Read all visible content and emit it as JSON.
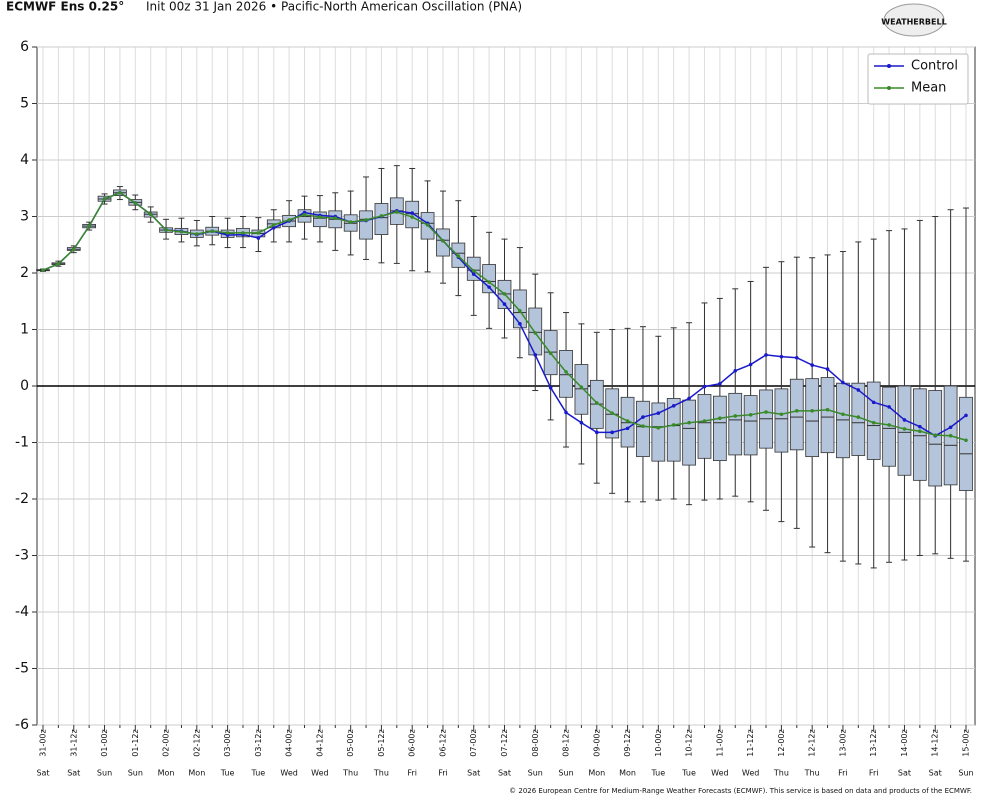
{
  "chart_data": {
    "type": "box",
    "title": "ECMWF Ens 0.25°",
    "subtitle": "Init 00z 31 Jan 2026 • Pacific-North American Oscillation (PNA)",
    "logo": "WEATHERBELL",
    "footer": "© 2026 European Centre for Medium-Range Weather Forecasts (ECMWF). This service is based on data and products of the ECMWF.",
    "categories": [
      "31-00z",
      null,
      "31-12z",
      null,
      "01-00z",
      null,
      "01-12z",
      null,
      "02-00z",
      null,
      "02-12z",
      null,
      "03-00z",
      null,
      "03-12z",
      null,
      "04-00z",
      null,
      "04-12z",
      null,
      "05-00z",
      null,
      "05-12z",
      null,
      "06-00z",
      null,
      "06-12z",
      null,
      "07-00z",
      null,
      "07-12z",
      null,
      "08-00z",
      null,
      "08-12z",
      null,
      "09-00z",
      null,
      "09-12z",
      null,
      "10-00z",
      null,
      "10-12z",
      null,
      "11-00z",
      null,
      "11-12z",
      null,
      "12-00z",
      null,
      "12-12z",
      null,
      "13-00z",
      null,
      "13-12z",
      null,
      "14-00z",
      null,
      "14-12z",
      null,
      "15-00z"
    ],
    "day_labels": [
      "Sat",
      null,
      "Sat",
      null,
      "Sun",
      null,
      "Sun",
      null,
      "Mon",
      null,
      "Mon",
      null,
      "Tue",
      null,
      "Tue",
      null,
      "Wed",
      null,
      "Wed",
      null,
      "Thu",
      null,
      "Thu",
      null,
      "Fri",
      null,
      "Fri",
      null,
      "Sat",
      null,
      "Sat",
      null,
      "Sun",
      null,
      "Sun",
      null,
      "Mon",
      null,
      "Mon",
      null,
      "Tue",
      null,
      "Tue",
      null,
      "Wed",
      null,
      "Wed",
      null,
      "Thu",
      null,
      "Thu",
      null,
      "Fri",
      null,
      "Fri",
      null,
      "Sat",
      null,
      "Sat",
      null,
      "Sun"
    ],
    "ylim": [
      -6,
      6
    ],
    "yticks": [
      -6,
      -5,
      -4,
      -3,
      -2,
      -1,
      0,
      1,
      2,
      3,
      4,
      5,
      6
    ],
    "grid": true,
    "legend": "top-right",
    "boxes": {
      "color": "#b4c4da",
      "min": [
        2.03,
        2.12,
        2.36,
        2.76,
        3.22,
        3.3,
        3.12,
        2.9,
        2.6,
        2.55,
        2.48,
        2.5,
        2.45,
        2.45,
        2.38,
        2.55,
        2.55,
        2.6,
        2.55,
        2.4,
        2.32,
        2.24,
        2.18,
        2.17,
        2.04,
        2.02,
        1.82,
        1.6,
        1.25,
        1.02,
        0.85,
        0.5,
        -0.08,
        -0.6,
        -1.08,
        -1.38,
        -1.72,
        -1.9,
        -2.05,
        -2.05,
        -2.02,
        -2.0,
        -2.1,
        -2.02,
        -2.0,
        -1.95,
        -2.05,
        -2.2,
        -2.4,
        -2.52,
        -2.85,
        -2.95,
        -3.1,
        -3.15,
        -3.22,
        -3.12,
        -3.08,
        -3.0,
        -2.97,
        -3.05,
        -3.1
      ],
      "q1": [
        2.04,
        2.15,
        2.4,
        2.8,
        3.27,
        3.37,
        3.2,
        2.99,
        2.72,
        2.68,
        2.63,
        2.67,
        2.63,
        2.64,
        2.64,
        2.8,
        2.82,
        2.9,
        2.82,
        2.8,
        2.74,
        2.6,
        2.68,
        2.86,
        2.8,
        2.6,
        2.3,
        2.1,
        1.87,
        1.65,
        1.37,
        1.03,
        0.55,
        0.2,
        -0.2,
        -0.5,
        -0.75,
        -0.92,
        -1.08,
        -1.25,
        -1.33,
        -1.33,
        -1.4,
        -1.28,
        -1.32,
        -1.22,
        -1.22,
        -1.1,
        -1.17,
        -1.13,
        -1.25,
        -1.18,
        -1.27,
        -1.23,
        -1.3,
        -1.42,
        -1.58,
        -1.67,
        -1.77,
        -1.75,
        -1.85
      ],
      "median": [
        2.05,
        2.16,
        2.42,
        2.83,
        3.31,
        3.42,
        3.25,
        3.04,
        2.76,
        2.73,
        2.69,
        2.74,
        2.7,
        2.71,
        2.7,
        2.87,
        2.92,
        3.0,
        2.97,
        2.95,
        2.88,
        2.95,
        2.98,
        3.1,
        3.05,
        2.88,
        2.58,
        2.35,
        2.05,
        1.85,
        1.63,
        1.3,
        0.95,
        0.6,
        0.2,
        -0.05,
        -0.32,
        -0.5,
        -0.65,
        -0.72,
        -0.72,
        -0.7,
        -0.75,
        -0.65,
        -0.65,
        -0.6,
        -0.62,
        -0.58,
        -0.58,
        -0.55,
        -0.62,
        -0.55,
        -0.6,
        -0.65,
        -0.7,
        -0.75,
        -0.82,
        -0.88,
        -1.03,
        -1.05,
        -1.2
      ],
      "q3": [
        2.06,
        2.18,
        2.45,
        2.86,
        3.36,
        3.47,
        3.3,
        3.08,
        2.8,
        2.79,
        2.76,
        2.81,
        2.76,
        2.79,
        2.76,
        2.94,
        3.02,
        3.12,
        3.08,
        3.1,
        3.03,
        3.1,
        3.23,
        3.33,
        3.27,
        3.07,
        2.78,
        2.53,
        2.28,
        2.15,
        1.87,
        1.7,
        1.38,
        0.98,
        0.63,
        0.38,
        0.1,
        -0.05,
        -0.2,
        -0.27,
        -0.3,
        -0.22,
        -0.25,
        -0.15,
        -0.18,
        -0.13,
        -0.17,
        -0.07,
        -0.05,
        0.12,
        0.13,
        0.15,
        0.05,
        0.05,
        0.07,
        -0.02,
        0.0,
        -0.05,
        -0.08,
        0.0,
        -0.2
      ],
      "max": [
        2.07,
        2.21,
        2.48,
        2.9,
        3.4,
        3.53,
        3.38,
        3.17,
        2.95,
        2.97,
        2.93,
        3.0,
        2.97,
        3.0,
        2.98,
        3.12,
        3.28,
        3.36,
        3.37,
        3.42,
        3.45,
        3.7,
        3.85,
        3.9,
        3.85,
        3.63,
        3.45,
        3.28,
        3.0,
        2.72,
        2.6,
        2.45,
        1.98,
        1.65,
        1.3,
        1.1,
        0.95,
        1.0,
        1.02,
        1.05,
        0.88,
        1.03,
        1.12,
        1.47,
        1.55,
        1.72,
        1.85,
        2.1,
        2.2,
        2.28,
        2.27,
        2.32,
        2.38,
        2.55,
        2.6,
        2.75,
        2.78,
        2.93,
        3.0,
        3.12,
        3.15
      ]
    },
    "series": [
      {
        "name": "Control",
        "color": "#1a1acc",
        "values": [
          2.05,
          2.16,
          2.42,
          2.83,
          3.31,
          3.42,
          3.24,
          3.04,
          2.76,
          2.74,
          2.68,
          2.74,
          2.67,
          2.68,
          2.62,
          2.8,
          2.92,
          3.07,
          3.02,
          3.0,
          2.9,
          2.93,
          3.0,
          3.1,
          3.06,
          2.88,
          2.57,
          2.28,
          1.98,
          1.75,
          1.45,
          1.1,
          0.55,
          -0.03,
          -0.47,
          -0.65,
          -0.82,
          -0.82,
          -0.75,
          -0.55,
          -0.48,
          -0.35,
          -0.22,
          -0.01,
          0.04,
          0.27,
          0.38,
          0.55,
          0.52,
          0.5,
          0.37,
          0.3,
          0.06,
          -0.07,
          -0.29,
          -0.37,
          -0.6,
          -0.72,
          -0.88,
          -0.73,
          -0.52
        ]
      },
      {
        "name": "Mean",
        "color": "#3a8a2a",
        "values": [
          2.05,
          2.16,
          2.42,
          2.83,
          3.31,
          3.42,
          3.24,
          3.04,
          2.76,
          2.73,
          2.69,
          2.74,
          2.71,
          2.71,
          2.71,
          2.85,
          2.94,
          3.03,
          2.99,
          2.97,
          2.9,
          2.94,
          3.01,
          3.08,
          2.99,
          2.85,
          2.57,
          2.3,
          2.04,
          1.84,
          1.63,
          1.33,
          0.94,
          0.58,
          0.25,
          -0.02,
          -0.3,
          -0.48,
          -0.62,
          -0.71,
          -0.74,
          -0.69,
          -0.65,
          -0.62,
          -0.57,
          -0.53,
          -0.51,
          -0.46,
          -0.5,
          -0.44,
          -0.44,
          -0.42,
          -0.5,
          -0.55,
          -0.65,
          -0.69,
          -0.76,
          -0.8,
          -0.87,
          -0.88,
          -0.96
        ]
      }
    ]
  }
}
